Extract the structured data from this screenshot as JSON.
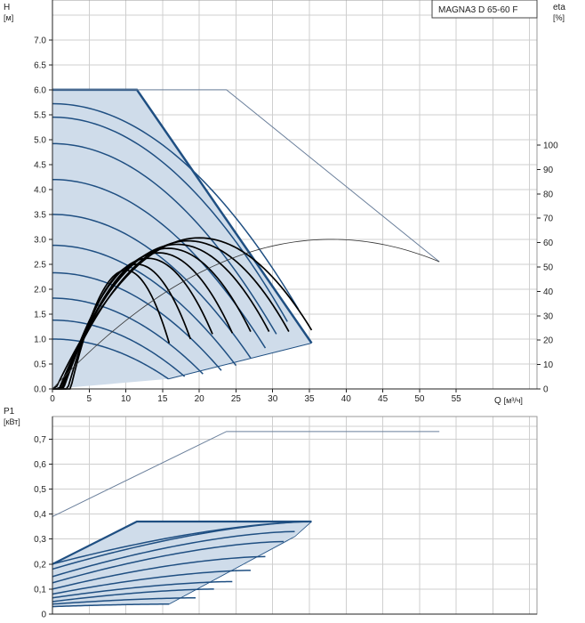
{
  "chart_data": [
    {
      "type": "line",
      "legend": "MAGNA3 D 65-60 F",
      "ylabel": "H",
      "yunit": "[м]",
      "y2label": "eta",
      "y2unit": "[%]",
      "xlabel": "Q",
      "xunit": "[м³/ч]",
      "xlim": [
        0,
        66
      ],
      "ylim": [
        0,
        7.8
      ],
      "y2lim": [
        0,
        100
      ],
      "x_ticks": [
        "0",
        "5",
        "10",
        "15",
        "20",
        "25",
        "30",
        "35",
        "40",
        "45",
        "50",
        "55"
      ],
      "y_ticks": [
        "0.0",
        "0.5",
        "1.0",
        "1.5",
        "2.0",
        "2.5",
        "3.0",
        "3.5",
        "4.0",
        "4.5",
        "5.0",
        "5.5",
        "6.0",
        "6.5",
        "7.0"
      ],
      "y2_ticks": [
        "0",
        "10",
        "20",
        "30",
        "40",
        "50",
        "60",
        "70",
        "80",
        "90",
        "100"
      ],
      "grid": true,
      "envelope": {
        "x": [
          0,
          11.5,
          35.3,
          15.8,
          0
        ],
        "y": [
          6.0,
          6.0,
          0.92,
          0.2,
          0
        ]
      },
      "twin_pump_max_curve": {
        "x": [
          0,
          23.7,
          52.7
        ],
        "y": [
          6.0,
          6.0,
          2.55
        ]
      },
      "head_curves": [
        {
          "h0": 5.72,
          "x_end": 33.5,
          "y_end": 1.6
        },
        {
          "h0": 5.45,
          "x_end": 32.0,
          "y_end": 1.35
        },
        {
          "h0": 4.92,
          "x_end": 30.5,
          "y_end": 1.1
        },
        {
          "h0": 4.2,
          "x_end": 29.0,
          "y_end": 0.82
        },
        {
          "h0": 3.5,
          "x_end": 27.0,
          "y_end": 0.62
        },
        {
          "h0": 2.88,
          "x_end": 25.0,
          "y_end": 0.47
        },
        {
          "h0": 2.33,
          "x_end": 23.0,
          "y_end": 0.37
        },
        {
          "h0": 1.82,
          "x_end": 20.5,
          "y_end": 0.3
        },
        {
          "h0": 1.38,
          "x_end": 18.0,
          "y_end": 0.25
        },
        {
          "h0": 1.0,
          "x_end": 15.8,
          "y_end": 0.2
        }
      ],
      "efficiency_curves": [
        {
          "x_end": 35.3,
          "y_end": 1.18,
          "x_peak": 20.0,
          "h_peak": 3.03
        },
        {
          "x_end": 32.2,
          "y_end": 1.15,
          "x_peak": 18.5,
          "h_peak": 2.97
        },
        {
          "x_end": 29.5,
          "y_end": 1.15,
          "x_peak": 17.0,
          "h_peak": 2.9
        },
        {
          "x_end": 27.0,
          "y_end": 1.15,
          "x_peak": 15.8,
          "h_peak": 2.82
        },
        {
          "x_end": 24.5,
          "y_end": 1.12,
          "x_peak": 14.5,
          "h_peak": 2.73
        },
        {
          "x_end": 21.8,
          "y_end": 1.1,
          "x_peak": 13.0,
          "h_peak": 2.62
        },
        {
          "x_end": 18.8,
          "y_end": 1.0,
          "x_peak": 11.5,
          "h_peak": 2.5
        },
        {
          "x_end": 15.9,
          "y_end": 0.92,
          "x_peak": 10.0,
          "h_peak": 2.38
        }
      ],
      "twin_efficiency_curve": {
        "x_peak": 38.0,
        "h_peak": 3.0,
        "x_end": 52.7,
        "y_end": 2.45
      }
    },
    {
      "type": "line",
      "ylabel": "P1",
      "yunit": "[кВт]",
      "xlim": [
        0,
        66
      ],
      "ylim": [
        0,
        0.79
      ],
      "y_ticks": [
        "0",
        "0,1",
        "0,2",
        "0,3",
        "0,4",
        "0,5",
        "0,6",
        "0,7"
      ],
      "grid": true,
      "envelope": {
        "x": [
          0,
          11.5,
          35.3,
          35.3,
          32.0,
          15.9,
          0
        ],
        "y": [
          0.2,
          0.37,
          0.37,
          0.37,
          0.29,
          0.04,
          0.03
        ]
      },
      "twin_pump_max_curve": {
        "x": [
          0,
          23.7,
          52.7
        ],
        "y": [
          0.39,
          0.73,
          0.73
        ]
      },
      "power_curves": [
        {
          "y0": 0.2,
          "x_end": 35.3,
          "y_end": 0.37
        },
        {
          "y0": 0.18,
          "x_end": 35.3,
          "y_end": 0.37
        },
        {
          "y0": 0.15,
          "x_end": 33.0,
          "y_end": 0.33
        },
        {
          "y0": 0.125,
          "x_end": 31.5,
          "y_end": 0.29
        },
        {
          "y0": 0.1,
          "x_end": 29.0,
          "y_end": 0.23
        },
        {
          "y0": 0.08,
          "x_end": 27.0,
          "y_end": 0.175
        },
        {
          "y0": 0.065,
          "x_end": 24.5,
          "y_end": 0.13
        },
        {
          "y0": 0.05,
          "x_end": 22.0,
          "y_end": 0.1
        },
        {
          "y0": 0.04,
          "x_end": 19.5,
          "y_end": 0.065
        },
        {
          "y0": 0.03,
          "x_end": 15.9,
          "y_end": 0.04
        }
      ]
    }
  ],
  "colors": {
    "envelope_fill": "#cfdcea",
    "envelope_stroke": "#1f4f82",
    "curve": "#1f4f82",
    "twin_curve": "#6a7f9b",
    "efficiency": "#000000",
    "grid": "#cfcfcf"
  }
}
